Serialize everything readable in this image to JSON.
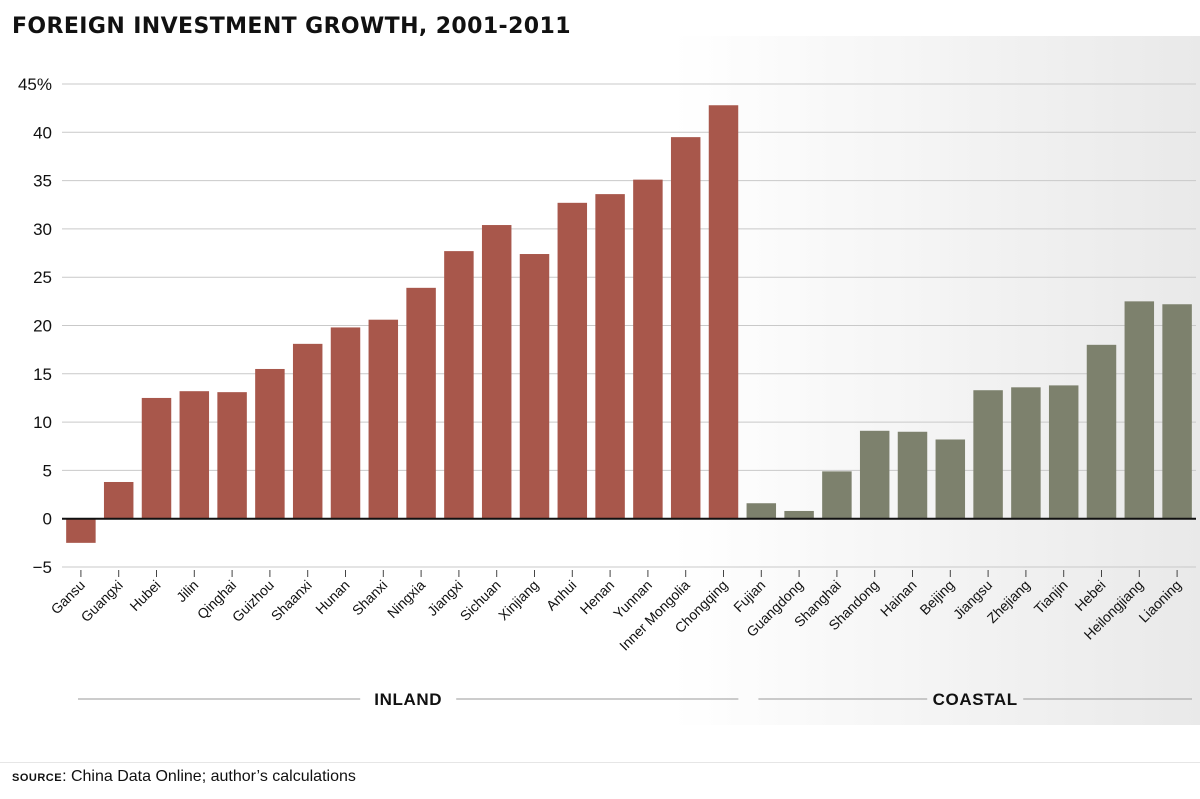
{
  "chart_data": {
    "type": "bar",
    "title": "FOREIGN INVESTMENT GROWTH, 2001-2011",
    "xlabel": "",
    "ylabel": "",
    "ylim": [
      -5,
      45
    ],
    "y_ticks": [
      "45%",
      "40",
      "35",
      "30",
      "25",
      "20",
      "15",
      "10",
      "5",
      "0",
      "−5"
    ],
    "y_tick_values": [
      45,
      40,
      35,
      30,
      25,
      20,
      15,
      10,
      5,
      0,
      -5
    ],
    "grid": true,
    "groups": [
      {
        "name": "INLAND",
        "color": "#a8574b",
        "categories": [
          "Gansu",
          "Guangxi",
          "Hubei",
          "Jilin",
          "Qinghai",
          "Guizhou",
          "Shaanxi",
          "Hunan",
          "Shanxi",
          "Ningxia",
          "Jiangxi",
          "Sichuan",
          "Xinjiang",
          "Anhui",
          "Henan",
          "Yunnan",
          "Inner Mongolia",
          "Chongqing"
        ],
        "values": [
          -2.5,
          3.8,
          12.5,
          13.2,
          13.1,
          15.5,
          18.1,
          19.8,
          20.6,
          23.9,
          27.7,
          30.4,
          27.4,
          32.7,
          33.6,
          35.1,
          39.5,
          42.8
        ]
      },
      {
        "name": "COASTAL",
        "color": "#7d816d",
        "categories": [
          "Fujian",
          "Guangdong",
          "Shanghai",
          "Shandong",
          "Hainan",
          "Beijing",
          "Jiangsu",
          "Zhejiang",
          "Tianjin",
          "Hebei",
          "Heilongjiang",
          "Liaoning"
        ],
        "values": [
          1.6,
          0.8,
          4.9,
          9.1,
          9.0,
          8.2,
          13.3,
          13.6,
          13.8,
          18.0,
          22.5,
          22.2
        ]
      }
    ]
  },
  "footer": {
    "source_label": "source",
    "source_text": ": China Data Online; author’s calculations"
  }
}
